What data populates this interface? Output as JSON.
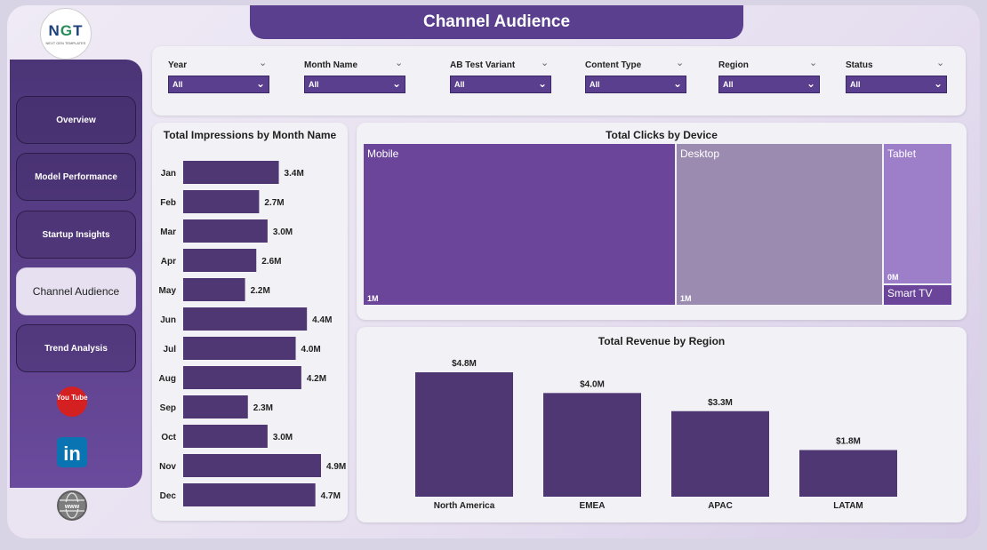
{
  "title": "Channel Audience",
  "logo": {
    "text_a": "N",
    "text_b": "G",
    "text_c": "T",
    "subtitle": "NEXT GEN TEMPLATES"
  },
  "nav": [
    {
      "label": "Overview",
      "active": false
    },
    {
      "label": "Model Performance",
      "active": false
    },
    {
      "label": "Startup Insights",
      "active": false
    },
    {
      "label": "Channel Audience",
      "active": true
    },
    {
      "label": "Trend Analysis",
      "active": false
    }
  ],
  "social": {
    "youtube_text": "You Tube",
    "linkedin_text": "in",
    "web_text": "www"
  },
  "filters": [
    {
      "label": "Year",
      "value": "All"
    },
    {
      "label": "Month Name",
      "value": "All"
    },
    {
      "label": "AB Test Variant",
      "value": "All"
    },
    {
      "label": "Content Type",
      "value": "All"
    },
    {
      "label": "Region",
      "value": "All"
    },
    {
      "label": "Status",
      "value": "All"
    }
  ],
  "colors": {
    "accent": "#5a3f8e",
    "bar": "#4f3773",
    "mobile": "#6a4599",
    "desktop": "#9c8bb0",
    "tablet": "#9d7ec8",
    "smarttv": "#6a4599"
  },
  "chart_data": [
    {
      "type": "bar",
      "orientation": "horizontal",
      "title": "Total Impressions by Month Name",
      "categories": [
        "Jan",
        "Feb",
        "Mar",
        "Apr",
        "May",
        "Jun",
        "Jul",
        "Aug",
        "Sep",
        "Oct",
        "Nov",
        "Dec"
      ],
      "values": [
        3.4,
        2.7,
        3.0,
        2.6,
        2.2,
        4.4,
        4.0,
        4.2,
        2.3,
        3.0,
        4.9,
        4.7
      ],
      "labels": [
        "3.4M",
        "2.7M",
        "3.0M",
        "2.6M",
        "2.2M",
        "4.4M",
        "4.0M",
        "4.2M",
        "2.3M",
        "3.0M",
        "4.9M",
        "4.7M"
      ],
      "unit": "M"
    },
    {
      "type": "treemap",
      "title": "Total Clicks by Device",
      "categories": [
        "Mobile",
        "Desktop",
        "Tablet",
        "Smart TV"
      ],
      "shares": [
        0.53,
        0.35,
        0.12,
        0.0
      ],
      "labels": [
        "1M",
        "1M",
        "0M",
        ""
      ]
    },
    {
      "type": "bar",
      "title": "Total Revenue by Region",
      "categories": [
        "North America",
        "EMEA",
        "APAC",
        "LATAM"
      ],
      "values": [
        4.8,
        4.0,
        3.3,
        1.8
      ],
      "labels": [
        "$4.8M",
        "$4.0M",
        "$3.3M",
        "$1.8M"
      ],
      "unit": "$M"
    }
  ]
}
